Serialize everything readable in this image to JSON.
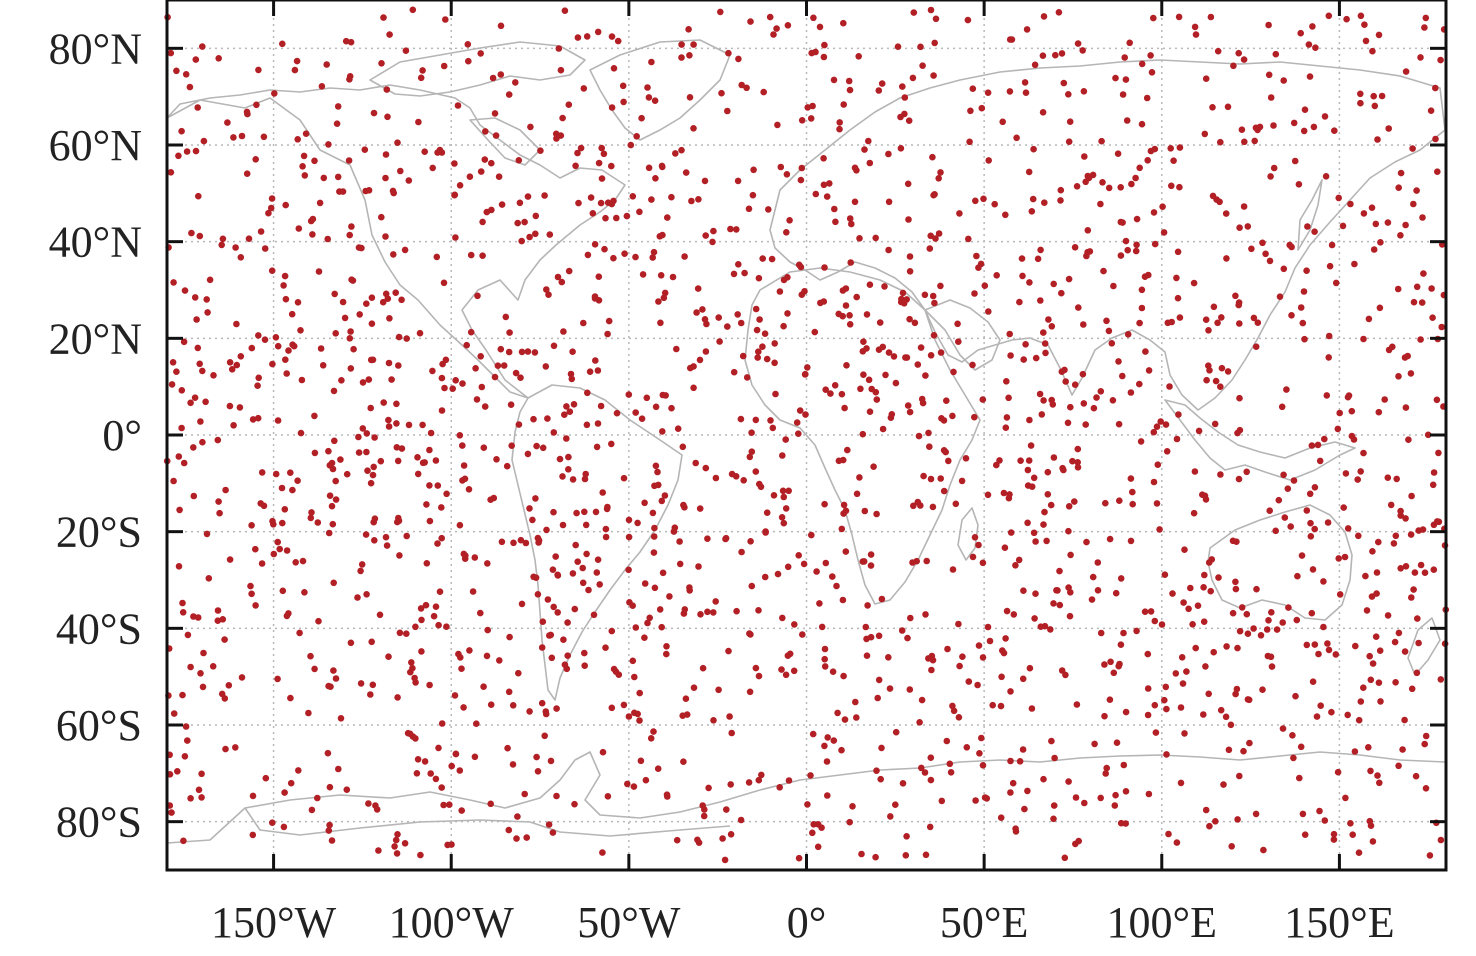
{
  "map": {
    "projection": "plate-carree",
    "lon_range": [
      -180,
      180
    ],
    "lat_range": [
      -90,
      90
    ],
    "grid": true,
    "background": "#ffffff",
    "coastline_color": "#b5b5b5",
    "station_color": "#b22026",
    "lat_ticks": [
      {
        "value": 80,
        "label": "80°N"
      },
      {
        "value": 60,
        "label": "60°N"
      },
      {
        "value": 40,
        "label": "40°N"
      },
      {
        "value": 20,
        "label": "20°N"
      },
      {
        "value": 0,
        "label": "0°"
      },
      {
        "value": -20,
        "label": "20°S"
      },
      {
        "value": -40,
        "label": "40°S"
      },
      {
        "value": -60,
        "label": "60°S"
      },
      {
        "value": -80,
        "label": "80°S"
      }
    ],
    "lon_ticks": [
      {
        "value": -150,
        "label": "150°W"
      },
      {
        "value": -100,
        "label": "100°W"
      },
      {
        "value": -50,
        "label": "50°W"
      },
      {
        "value": 0,
        "label": "0°"
      },
      {
        "value": 50,
        "label": "50°E"
      },
      {
        "value": 100,
        "label": "100°E"
      },
      {
        "value": 150,
        "label": "150°E"
      }
    ],
    "stations": {
      "type": "scatter",
      "marker": "dot",
      "approximate_count": 2000,
      "distribution": "quasi-uniform global coverage, land and ocean, including polar regions"
    }
  }
}
